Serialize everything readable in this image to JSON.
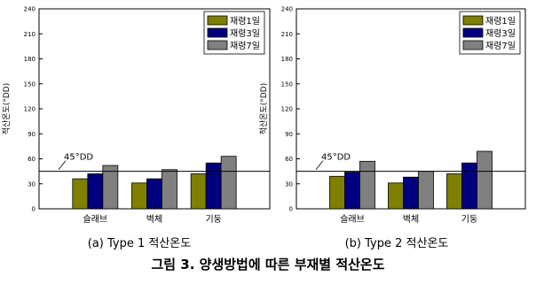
{
  "figure_title": "그림 3. 양생방법에 따른 부재별 적산온도",
  "colors": {
    "series": [
      "#7f7f00",
      "#00007f",
      "#808080"
    ]
  },
  "chart_data": [
    {
      "type": "bar",
      "caption": "(a) Type 1 적산온도",
      "ylabel": "적산온도(°DD)",
      "ylim": [
        0,
        240
      ],
      "yticks": [
        0,
        30,
        60,
        90,
        120,
        150,
        180,
        210,
        240
      ],
      "categories": [
        "슬래브",
        "벽체",
        "기둥"
      ],
      "series": [
        {
          "name": "재령1일",
          "values": [
            36,
            31,
            42
          ]
        },
        {
          "name": "재령3일",
          "values": [
            42,
            36,
            55
          ]
        },
        {
          "name": "재령7일",
          "values": [
            52,
            47,
            63
          ]
        }
      ],
      "reference_line": {
        "value": 45,
        "label": "45°DD"
      },
      "legend": "top-right",
      "grid": false
    },
    {
      "type": "bar",
      "caption": "(b) Type 2 적산온도",
      "ylabel": "적산온도(°DD)",
      "ylim": [
        0,
        240
      ],
      "yticks": [
        0,
        30,
        60,
        90,
        120,
        150,
        180,
        210,
        240
      ],
      "categories": [
        "슬래브",
        "벽체",
        "기둥"
      ],
      "series": [
        {
          "name": "재령1일",
          "values": [
            39,
            31,
            42
          ]
        },
        {
          "name": "재령3일",
          "values": [
            44,
            38,
            55
          ]
        },
        {
          "name": "재령7일",
          "values": [
            57,
            45,
            69
          ]
        }
      ],
      "reference_line": {
        "value": 45,
        "label": "45°DD"
      },
      "legend": "top-right",
      "grid": false
    }
  ]
}
